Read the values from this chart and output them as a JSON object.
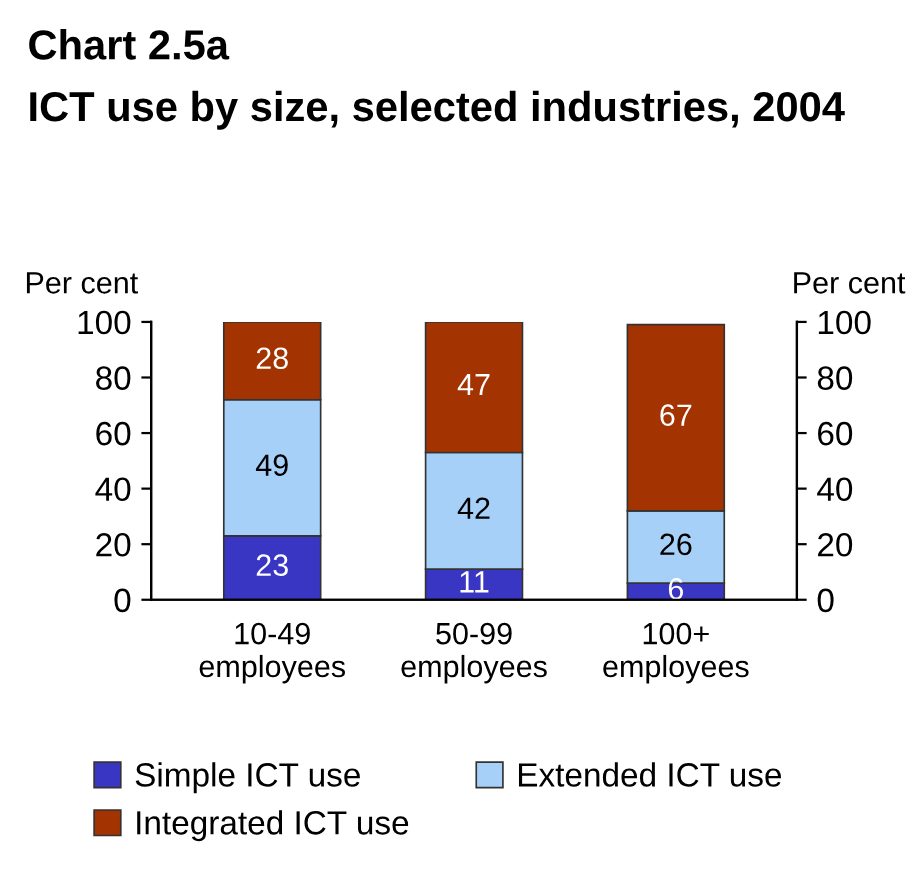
{
  "chart_data": {
    "type": "bar",
    "title": "Chart 2.5a",
    "subtitle": "ICT use by size, selected industries, 2004",
    "ylabel": "Per cent",
    "y2label": "Per cent",
    "categories": [
      "10-49\nemployees",
      "50-99\nemployees",
      "100+\nemployees"
    ],
    "stacked": true,
    "data_labels": true,
    "legend": "bottom",
    "grid": false,
    "ylim": [
      0,
      100
    ],
    "yticks": [
      0,
      20,
      40,
      60,
      80,
      100
    ],
    "y2lim": [
      0,
      100
    ],
    "y2ticks": [
      0,
      20,
      40,
      60,
      80,
      100
    ],
    "series": [
      {
        "name": "Simple ICT use",
        "color": "#3a36c4",
        "values": [
          23,
          11,
          6
        ]
      },
      {
        "name": "Extended ICT use",
        "color": "#a6d0f8",
        "values": [
          49,
          42,
          26
        ]
      },
      {
        "name": "Integrated ICT use",
        "color": "#a33300",
        "values": [
          28,
          47,
          67
        ]
      }
    ]
  }
}
